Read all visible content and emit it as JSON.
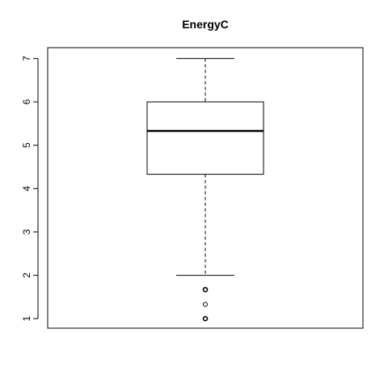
{
  "chart_data": {
    "type": "boxplot",
    "title": "EnergyC",
    "xlabel": "",
    "ylabel": "",
    "ylim": [
      0.78,
      7.25
    ],
    "yticks": [
      1,
      2,
      3,
      4,
      5,
      6,
      7
    ],
    "grid": false,
    "legend": "none",
    "box": {
      "whisker_low": 2.0,
      "q1": 4.33,
      "median": 5.33,
      "q3": 6.0,
      "whisker_high": 7.0
    },
    "outliers": [
      1.67,
      1.33,
      1.0
    ]
  }
}
